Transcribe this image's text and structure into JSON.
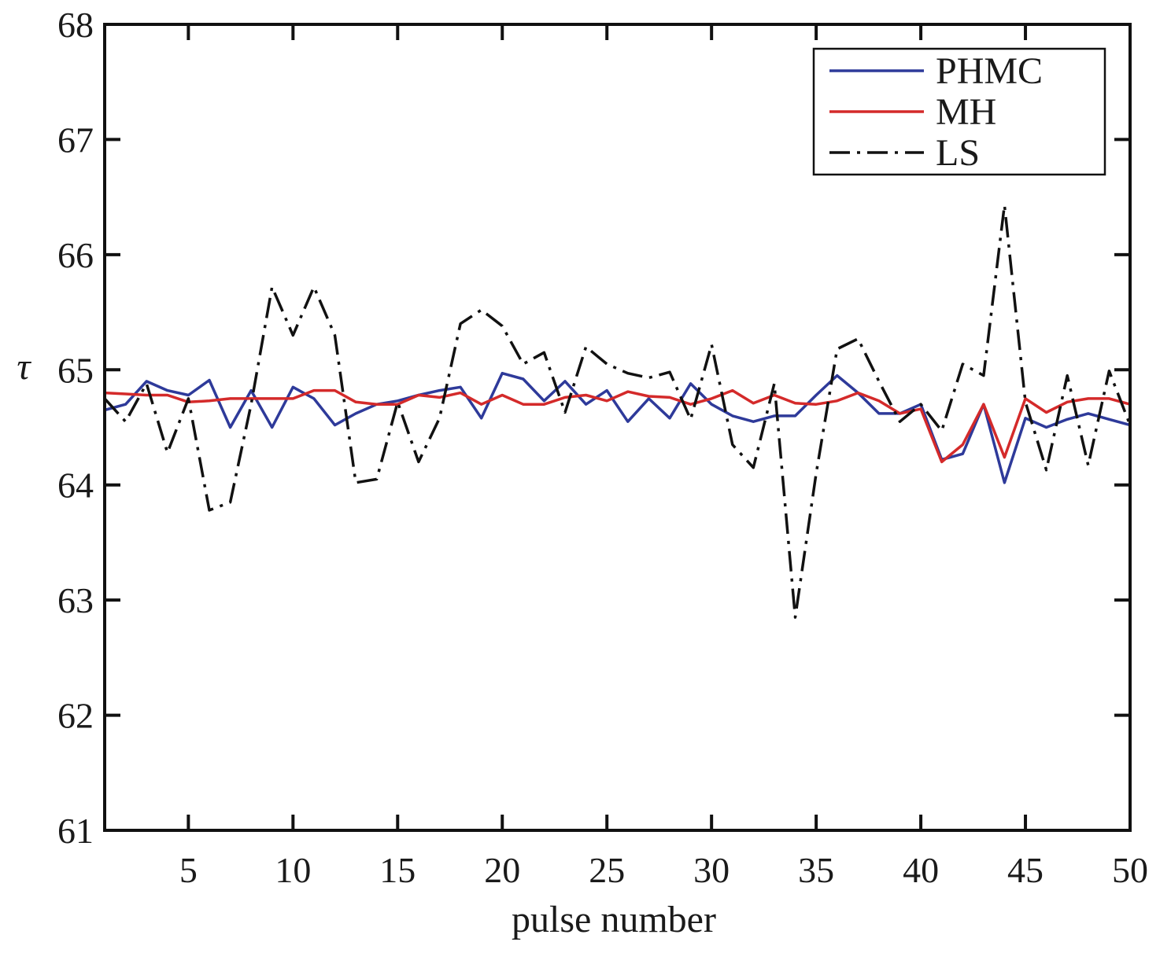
{
  "chart_data": {
    "type": "line",
    "xlabel": "pulse number",
    "ylabel": "τ",
    "xlim": [
      1,
      50
    ],
    "ylim": [
      61,
      68
    ],
    "xticks": [
      5,
      10,
      15,
      20,
      25,
      30,
      35,
      40,
      45,
      50
    ],
    "yticks": [
      61,
      62,
      63,
      64,
      65,
      66,
      67,
      68
    ],
    "grid": false,
    "legend_position": "top-right",
    "x": [
      1,
      2,
      3,
      4,
      5,
      6,
      7,
      8,
      9,
      10,
      11,
      12,
      13,
      14,
      15,
      16,
      17,
      18,
      19,
      20,
      21,
      22,
      23,
      24,
      25,
      26,
      27,
      28,
      29,
      30,
      31,
      32,
      33,
      34,
      35,
      36,
      37,
      38,
      39,
      40,
      41,
      42,
      43,
      44,
      45,
      46,
      47,
      48,
      49,
      50
    ],
    "series": [
      {
        "name": "PHMC",
        "color": "#2e3a9a",
        "dash": "solid",
        "values": [
          64.65,
          64.7,
          64.9,
          64.82,
          64.78,
          64.91,
          64.5,
          64.82,
          64.5,
          64.85,
          64.75,
          64.52,
          64.62,
          64.7,
          64.73,
          64.78,
          64.82,
          64.85,
          64.58,
          64.97,
          64.92,
          64.73,
          64.9,
          64.7,
          64.82,
          64.55,
          64.75,
          64.58,
          64.88,
          64.7,
          64.6,
          64.55,
          64.6,
          64.6,
          64.78,
          64.95,
          64.8,
          64.62,
          64.62,
          64.7,
          64.22,
          64.27,
          64.7,
          64.02,
          64.58,
          64.5,
          64.57,
          64.62,
          64.57,
          64.52
        ]
      },
      {
        "name": "MH",
        "color": "#d42a2a",
        "dash": "solid",
        "values": [
          64.8,
          64.79,
          64.78,
          64.78,
          64.72,
          64.73,
          64.75,
          64.75,
          64.75,
          64.75,
          64.82,
          64.82,
          64.72,
          64.7,
          64.7,
          64.78,
          64.76,
          64.8,
          64.7,
          64.78,
          64.7,
          64.7,
          64.76,
          64.78,
          64.73,
          64.81,
          64.77,
          64.76,
          64.7,
          64.75,
          64.82,
          64.71,
          64.78,
          64.71,
          64.7,
          64.73,
          64.8,
          64.73,
          64.62,
          64.66,
          64.2,
          64.35,
          64.7,
          64.24,
          64.75,
          64.63,
          64.72,
          64.75,
          64.75,
          64.7
        ]
      },
      {
        "name": "LS",
        "color": "#111111",
        "dash": "dashdot",
        "values": [
          64.75,
          64.55,
          64.88,
          64.28,
          64.75,
          63.78,
          63.85,
          64.7,
          65.72,
          65.3,
          65.72,
          65.3,
          64.02,
          64.05,
          64.72,
          64.2,
          64.58,
          65.4,
          65.52,
          65.38,
          65.05,
          65.15,
          64.63,
          65.2,
          65.05,
          64.97,
          64.93,
          64.98,
          64.57,
          65.22,
          64.35,
          64.15,
          64.88,
          62.85,
          64.1,
          65.18,
          65.27,
          64.9,
          64.55,
          64.7,
          64.47,
          65.05,
          64.95,
          66.43,
          64.72,
          64.13,
          64.95,
          64.17,
          64.99,
          64.52
        ]
      }
    ]
  }
}
